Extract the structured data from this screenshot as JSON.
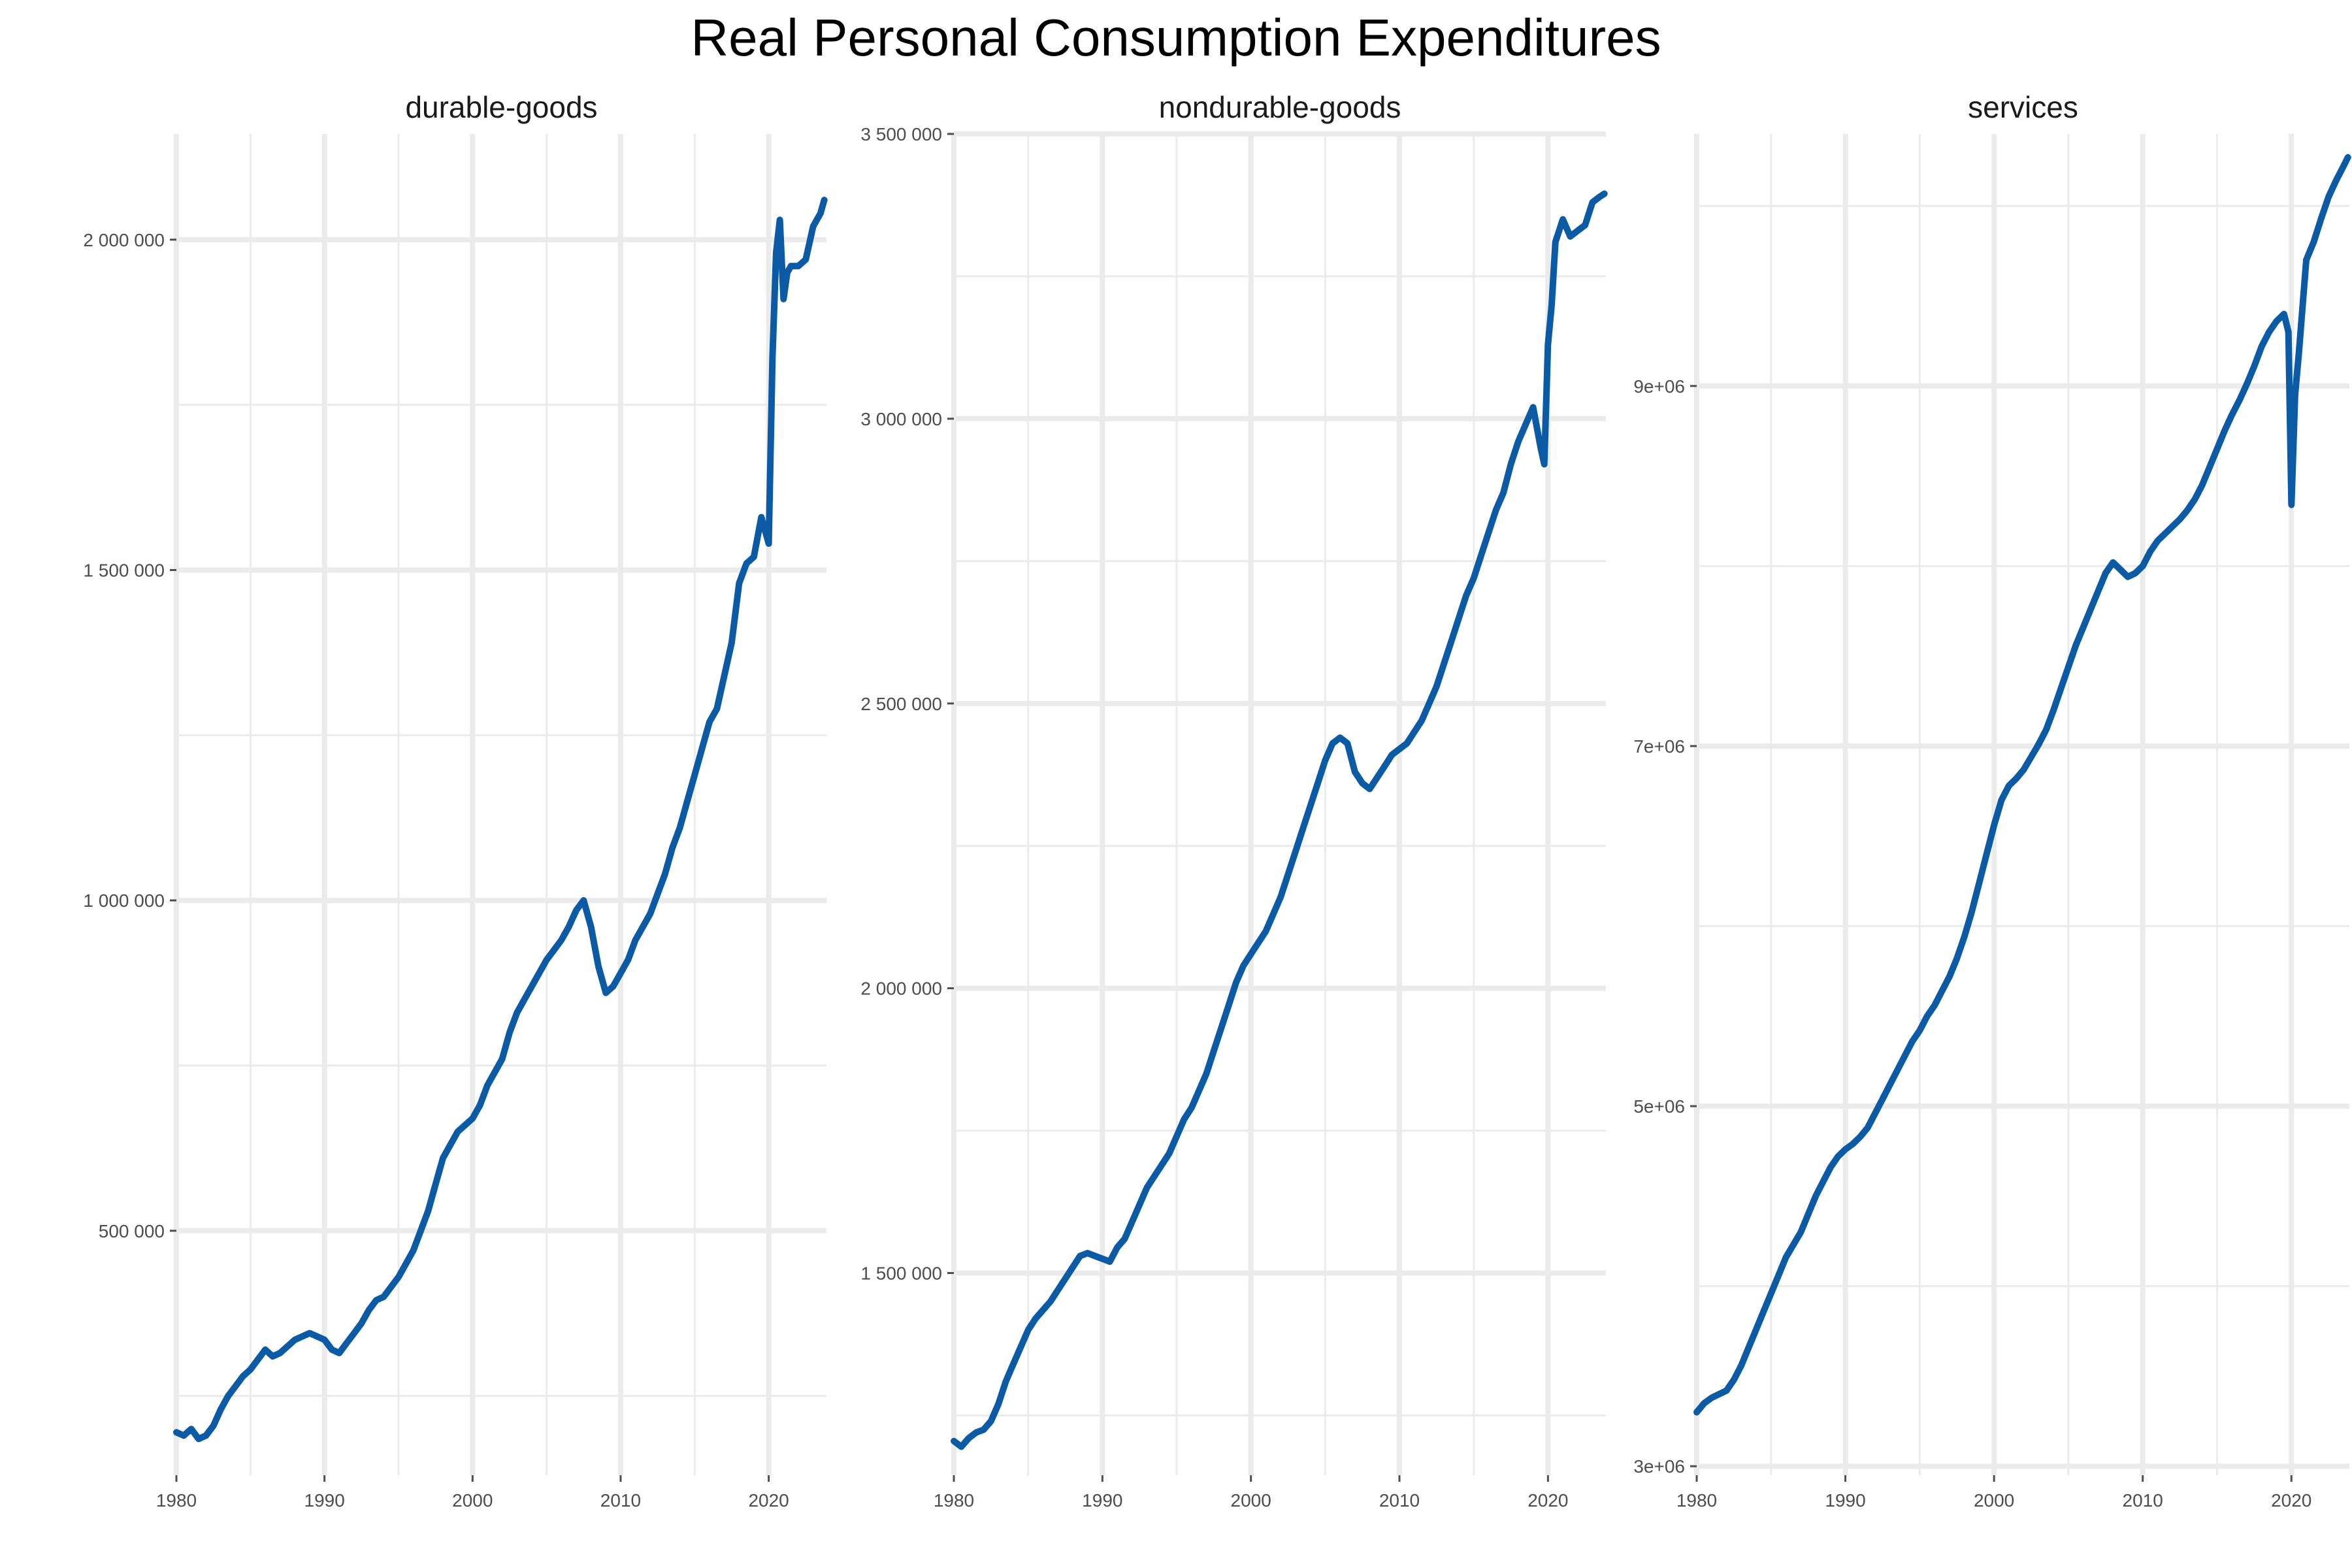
{
  "title": "Real Personal Consumption Expenditures",
  "colors": {
    "line": "#0b5aa6",
    "grid": "#ebebeb",
    "axis_text": "#4d4d4d"
  },
  "chart_data": [
    {
      "type": "line",
      "title": "durable-goods",
      "xlim": [
        1980,
        2023.9
      ],
      "ylim": [
        130000,
        2160000
      ],
      "x_ticks": [
        1980,
        1990,
        2000,
        2010,
        2020
      ],
      "x_tick_labels": [
        "1980",
        "1990",
        "2000",
        "2010",
        "2020"
      ],
      "y_ticks": [
        500000,
        1000000,
        1500000,
        2000000
      ],
      "y_tick_labels": [
        "500 000",
        "1 000 000",
        "1 500 000",
        "2 000 000"
      ],
      "grid": true,
      "series": [
        {
          "x": [
            1980,
            1980.5,
            1981,
            1981.5,
            1982,
            1982.5,
            1983,
            1983.5,
            1984,
            1984.5,
            1985,
            1985.5,
            1986,
            1986.5,
            1987,
            1987.5,
            1988,
            1988.5,
            1989,
            1989.5,
            1990,
            1990.5,
            1991,
            1991.5,
            1992,
            1992.5,
            1993,
            1993.5,
            1994,
            1994.5,
            1995,
            1995.5,
            1996,
            1996.5,
            1997,
            1997.5,
            1998,
            1998.5,
            1999,
            1999.5,
            2000,
            2000.5,
            2001,
            2001.5,
            2002,
            2002.5,
            2003,
            2003.5,
            2004,
            2004.5,
            2005,
            2005.5,
            2006,
            2006.5,
            2007,
            2007.5,
            2008,
            2008.5,
            2009,
            2009.5,
            2010,
            2010.5,
            2011,
            2011.5,
            2012,
            2012.5,
            2013,
            2013.5,
            2014,
            2014.5,
            2015,
            2015.5,
            2016,
            2016.5,
            2017,
            2017.5,
            2018,
            2018.5,
            2019,
            2019.5,
            2020,
            2020.25,
            2020.5,
            2020.75,
            2021,
            2021.25,
            2021.5,
            2022,
            2022.5,
            2023,
            2023.5,
            2023.75
          ],
          "y": [
            195000,
            190000,
            200000,
            185000,
            190000,
            205000,
            230000,
            250000,
            265000,
            280000,
            290000,
            305000,
            320000,
            310000,
            315000,
            325000,
            335000,
            340000,
            345000,
            340000,
            335000,
            320000,
            315000,
            330000,
            345000,
            360000,
            380000,
            395000,
            400000,
            415000,
            430000,
            450000,
            470000,
            500000,
            530000,
            570000,
            610000,
            630000,
            650000,
            660000,
            670000,
            690000,
            720000,
            740000,
            760000,
            800000,
            830000,
            850000,
            870000,
            890000,
            910000,
            925000,
            940000,
            960000,
            985000,
            1000000,
            960000,
            900000,
            860000,
            870000,
            890000,
            910000,
            940000,
            960000,
            980000,
            1010000,
            1040000,
            1080000,
            1110000,
            1150000,
            1190000,
            1230000,
            1270000,
            1290000,
            1340000,
            1390000,
            1480000,
            1510000,
            1520000,
            1580000,
            1540000,
            1820000,
            1980000,
            2030000,
            1910000,
            1950000,
            1960000,
            1960000,
            1970000,
            2020000,
            2040000,
            2060000
          ]
        }
      ]
    },
    {
      "type": "line",
      "title": "nondurable-goods",
      "xlim": [
        1980,
        2023.9
      ],
      "ylim": [
        1145000,
        3500000
      ],
      "x_ticks": [
        1980,
        1990,
        2000,
        2010,
        2020
      ],
      "x_tick_labels": [
        "1980",
        "1990",
        "2000",
        "2010",
        "2020"
      ],
      "y_ticks": [
        1500000,
        2000000,
        2500000,
        3000000,
        3500000
      ],
      "y_tick_labels": [
        "1 500 000",
        "2 000 000",
        "2 500 000",
        "3 000 000",
        "3 500 000"
      ],
      "grid": true,
      "series": [
        {
          "x": [
            1980,
            1980.5,
            1981,
            1981.5,
            1982,
            1982.5,
            1983,
            1983.5,
            1984,
            1984.5,
            1985,
            1985.5,
            1986,
            1986.5,
            1987,
            1987.5,
            1988,
            1988.5,
            1989,
            1989.5,
            1990,
            1990.5,
            1991,
            1991.5,
            1992,
            1992.5,
            1993,
            1993.5,
            1994,
            1994.5,
            1995,
            1995.5,
            1996,
            1996.5,
            1997,
            1997.5,
            1998,
            1998.5,
            1999,
            1999.5,
            2000,
            2000.5,
            2001,
            2001.5,
            2002,
            2002.5,
            2003,
            2003.5,
            2004,
            2004.5,
            2005,
            2005.5,
            2006,
            2006.5,
            2007,
            2007.5,
            2008,
            2008.5,
            2009,
            2009.5,
            2010,
            2010.5,
            2011,
            2011.5,
            2012,
            2012.5,
            2013,
            2013.5,
            2014,
            2014.5,
            2015,
            2015.5,
            2016,
            2016.5,
            2017,
            2017.5,
            2018,
            2018.5,
            2019,
            2019.5,
            2019.75,
            2020,
            2020.25,
            2020.5,
            2021,
            2021.5,
            2022,
            2022.5,
            2023,
            2023.5,
            2023.8
          ],
          "y": [
            1205000,
            1195000,
            1210000,
            1220000,
            1225000,
            1240000,
            1270000,
            1310000,
            1340000,
            1370000,
            1400000,
            1420000,
            1435000,
            1450000,
            1470000,
            1490000,
            1510000,
            1530000,
            1535000,
            1530000,
            1525000,
            1520000,
            1545000,
            1560000,
            1590000,
            1620000,
            1650000,
            1670000,
            1690000,
            1710000,
            1740000,
            1770000,
            1790000,
            1820000,
            1850000,
            1890000,
            1930000,
            1970000,
            2010000,
            2040000,
            2060000,
            2080000,
            2100000,
            2130000,
            2160000,
            2200000,
            2240000,
            2280000,
            2320000,
            2360000,
            2400000,
            2430000,
            2440000,
            2430000,
            2380000,
            2360000,
            2350000,
            2370000,
            2390000,
            2410000,
            2420000,
            2430000,
            2450000,
            2470000,
            2500000,
            2530000,
            2570000,
            2610000,
            2650000,
            2690000,
            2720000,
            2760000,
            2800000,
            2840000,
            2870000,
            2920000,
            2960000,
            2990000,
            3020000,
            2950000,
            2920000,
            3130000,
            3200000,
            3310000,
            3350000,
            3320000,
            3330000,
            3340000,
            3380000,
            3390000,
            3395000
          ]
        }
      ]
    },
    {
      "type": "line",
      "title": "services",
      "xlim": [
        1980,
        2023.9
      ],
      "ylim": [
        2950000,
        10400000
      ],
      "x_ticks": [
        1980,
        1990,
        2000,
        2010,
        2020
      ],
      "x_tick_labels": [
        "1980",
        "1990",
        "2000",
        "2010",
        "2020"
      ],
      "y_ticks": [
        3000000,
        5000000,
        7000000,
        9000000
      ],
      "y_tick_labels": [
        "3e+06",
        "5e+06",
        "7e+06",
        "9e+06"
      ],
      "grid": true,
      "series": [
        {
          "x": [
            1980,
            1980.5,
            1981,
            1981.5,
            1982,
            1982.5,
            1983,
            1983.5,
            1984,
            1984.5,
            1985,
            1985.5,
            1986,
            1986.5,
            1987,
            1987.5,
            1988,
            1988.5,
            1989,
            1989.5,
            1990,
            1990.5,
            1991,
            1991.5,
            1992,
            1992.5,
            1993,
            1993.5,
            1994,
            1994.5,
            1995,
            1995.5,
            1996,
            1996.5,
            1997,
            1997.5,
            1998,
            1998.5,
            1999,
            1999.5,
            2000,
            2000.5,
            2001,
            2001.5,
            2002,
            2002.5,
            2003,
            2003.5,
            2004,
            2004.5,
            2005,
            2005.5,
            2006,
            2006.5,
            2007,
            2007.5,
            2008,
            2008.5,
            2009,
            2009.5,
            2010,
            2010.5,
            2011,
            2011.5,
            2012,
            2012.5,
            2013,
            2013.5,
            2014,
            2014.5,
            2015,
            2015.5,
            2016,
            2016.5,
            2017,
            2017.5,
            2018,
            2018.5,
            2019,
            2019.5,
            2019.8,
            2020,
            2020.25,
            2020.5,
            2021,
            2021.5,
            2022,
            2022.5,
            2023,
            2023.5,
            2023.8
          ],
          "y": [
            3300000,
            3350000,
            3380000,
            3400000,
            3420000,
            3480000,
            3560000,
            3660000,
            3760000,
            3860000,
            3960000,
            4060000,
            4160000,
            4230000,
            4300000,
            4400000,
            4500000,
            4580000,
            4660000,
            4720000,
            4760000,
            4790000,
            4830000,
            4880000,
            4960000,
            5040000,
            5120000,
            5200000,
            5280000,
            5360000,
            5420000,
            5500000,
            5560000,
            5640000,
            5720000,
            5820000,
            5940000,
            6080000,
            6240000,
            6400000,
            6560000,
            6700000,
            6780000,
            6820000,
            6870000,
            6940000,
            7010000,
            7090000,
            7200000,
            7320000,
            7440000,
            7560000,
            7660000,
            7760000,
            7860000,
            7960000,
            8020000,
            7980000,
            7940000,
            7960000,
            8000000,
            8080000,
            8140000,
            8180000,
            8220000,
            8260000,
            8310000,
            8370000,
            8450000,
            8550000,
            8650000,
            8750000,
            8840000,
            8920000,
            9010000,
            9110000,
            9220000,
            9300000,
            9360000,
            9400000,
            9300000,
            8340000,
            8950000,
            9180000,
            9700000,
            9800000,
            9930000,
            10050000,
            10140000,
            10220000,
            10270000
          ]
        }
      ]
    }
  ]
}
